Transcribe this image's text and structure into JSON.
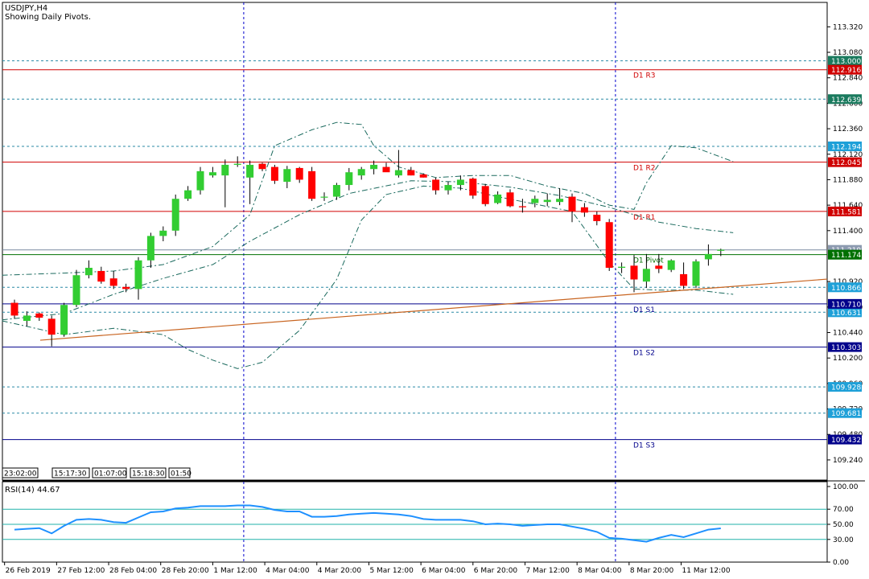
{
  "header": {
    "symbol_label": "USDJPY,H4",
    "subtitle": "Showing Daily Pivots."
  },
  "colors": {
    "bull": "#32cd32",
    "bear": "#ff0000",
    "candle_wick": "#000000",
    "resistance": "#d00000",
    "pivot": "#007000",
    "support": "#00008b",
    "dotted_levels": "#2a8aa6",
    "ma": "#1b6a5e",
    "trendline": "#c86420",
    "rsi": "#1e90ff",
    "rsi_levels": "#20b2aa",
    "grid_vline": "#0000cd"
  },
  "chart_data": [
    {
      "type": "candlestick",
      "title": "USDJPY,H4",
      "subtitle": "Showing Daily Pivots.",
      "ylim": [
        109.05,
        113.55
      ],
      "y_ticks": [
        113.32,
        113.08,
        112.84,
        112.6,
        112.36,
        112.12,
        111.88,
        111.64,
        111.4,
        110.92,
        110.68,
        110.44,
        110.2,
        109.96,
        109.72,
        109.48,
        109.24
      ],
      "x_tick_labels": [
        "26 Feb 2019",
        "27 Feb 12:00",
        "28 Feb 04:00",
        "28 Feb 20:00",
        "1 Mar 12:00",
        "4 Mar 04:00",
        "4 Mar 20:00",
        "5 Mar 12:00",
        "6 Mar 04:00",
        "6 Mar 20:00",
        "7 Mar 12:00",
        "8 Mar 04:00",
        "8 Mar 20:00",
        "11 Mar 12:00"
      ],
      "ohlc": [
        [
          110.72,
          110.75,
          110.57,
          110.6
        ],
        [
          110.55,
          110.64,
          110.5,
          110.6
        ],
        [
          110.62,
          110.63,
          110.55,
          110.58
        ],
        [
          110.57,
          110.6,
          110.31,
          110.42
        ],
        [
          110.42,
          110.72,
          110.4,
          110.7
        ],
        [
          110.7,
          111.03,
          110.68,
          110.98
        ],
        [
          110.98,
          111.12,
          110.95,
          111.05
        ],
        [
          111.02,
          111.06,
          110.9,
          110.92
        ],
        [
          110.95,
          111.02,
          110.85,
          110.88
        ],
        [
          110.87,
          110.9,
          110.82,
          110.85
        ],
        [
          110.85,
          111.15,
          110.75,
          111.12
        ],
        [
          111.12,
          111.38,
          111.05,
          111.35
        ],
        [
          111.35,
          111.44,
          111.3,
          111.4
        ],
        [
          111.4,
          111.74,
          111.35,
          111.7
        ],
        [
          111.7,
          111.82,
          111.68,
          111.78
        ],
        [
          111.78,
          112.0,
          111.74,
          111.96
        ],
        [
          111.92,
          112.0,
          111.9,
          111.95
        ],
        [
          111.92,
          112.07,
          111.62,
          112.02
        ],
        [
          112.02,
          112.1,
          112.0,
          112.03
        ],
        [
          111.9,
          112.06,
          111.65,
          112.02
        ],
        [
          112.03,
          112.04,
          111.96,
          111.98
        ],
        [
          112.0,
          112.02,
          111.84,
          111.87
        ],
        [
          111.86,
          112.01,
          111.8,
          111.98
        ],
        [
          111.99,
          112.0,
          111.85,
          111.88
        ],
        [
          111.96,
          112.0,
          111.68,
          111.7
        ],
        [
          111.72,
          111.76,
          111.68,
          111.72
        ],
        [
          111.72,
          111.85,
          111.69,
          111.83
        ],
        [
          111.83,
          111.99,
          111.78,
          111.95
        ],
        [
          111.92,
          112.0,
          111.88,
          111.98
        ],
        [
          111.98,
          112.06,
          111.93,
          112.02
        ],
        [
          112.0,
          112.04,
          111.96,
          111.95
        ],
        [
          111.92,
          112.16,
          111.9,
          111.97
        ],
        [
          111.97,
          112.0,
          111.92,
          111.92
        ],
        [
          111.93,
          111.94,
          111.9,
          111.9
        ],
        [
          111.88,
          111.9,
          111.74,
          111.78
        ],
        [
          111.78,
          111.86,
          111.74,
          111.83
        ],
        [
          111.83,
          111.92,
          111.78,
          111.88
        ],
        [
          111.89,
          111.9,
          111.7,
          111.73
        ],
        [
          111.82,
          111.84,
          111.63,
          111.65
        ],
        [
          111.66,
          111.77,
          111.65,
          111.74
        ],
        [
          111.76,
          111.79,
          111.62,
          111.63
        ],
        [
          111.63,
          111.7,
          111.57,
          111.62
        ],
        [
          111.66,
          111.73,
          111.62,
          111.7
        ],
        [
          111.67,
          111.75,
          111.63,
          111.69
        ],
        [
          111.67,
          111.8,
          111.64,
          111.7
        ],
        [
          111.72,
          111.75,
          111.48,
          111.58
        ],
        [
          111.62,
          111.66,
          111.53,
          111.57
        ],
        [
          111.55,
          111.58,
          111.45,
          111.49
        ],
        [
          111.48,
          111.51,
          111.02,
          111.05
        ],
        [
          111.05,
          111.1,
          111.0,
          111.06
        ],
        [
          111.07,
          111.17,
          110.82,
          110.94
        ],
        [
          110.92,
          111.18,
          110.86,
          111.04
        ],
        [
          111.07,
          111.18,
          111.0,
          111.04
        ],
        [
          111.03,
          111.13,
          111.01,
          111.12
        ],
        [
          110.99,
          111.1,
          110.85,
          110.88
        ],
        [
          110.88,
          111.13,
          110.86,
          111.11
        ],
        [
          111.13,
          111.27,
          111.07,
          111.18
        ],
        [
          111.21,
          111.23,
          111.16,
          111.22
        ]
      ],
      "pivot_levels": [
        {
          "name": "D1 R3",
          "value": 112.916,
          "tag": "112.916",
          "kind": "resistance"
        },
        {
          "name": "D1 R2",
          "value": 112.045,
          "tag": "112.045",
          "kind": "resistance"
        },
        {
          "name": "D1 R1",
          "value": 111.581,
          "tag": "111.581",
          "kind": "resistance"
        },
        {
          "name": "D1 Pivot",
          "value": 111.174,
          "tag": "111.174",
          "kind": "pivot"
        },
        {
          "name": "D1 S1",
          "value": 110.71,
          "tag": "110.710",
          "kind": "support"
        },
        {
          "name": "D1 S2",
          "value": 110.303,
          "tag": "110.303",
          "kind": "support"
        },
        {
          "name": "D1 S3",
          "value": 109.432,
          "tag": "109.432",
          "kind": "support"
        }
      ],
      "dotted_levels": [
        {
          "value": 113.0,
          "tag": "113.000"
        },
        {
          "value": 112.639,
          "tag": "112.639"
        },
        {
          "value": 112.194,
          "tag": "112.194"
        },
        {
          "value": 110.866,
          "tag": "110.866"
        },
        {
          "value": 110.631,
          "tag": "110.631"
        },
        {
          "value": 109.928,
          "tag": "109.928"
        },
        {
          "value": 109.681,
          "tag": "109.681"
        }
      ],
      "price_line": {
        "value": 111.219,
        "tag": "111.219"
      },
      "upper_band": [
        [
          -1,
          110.98
        ],
        [
          4,
          111.0
        ],
        [
          8,
          111.02
        ],
        [
          12,
          111.08
        ],
        [
          16,
          111.25
        ],
        [
          19,
          111.55
        ],
        [
          21,
          112.2
        ],
        [
          24,
          112.35
        ],
        [
          26,
          112.42
        ],
        [
          28,
          112.4
        ],
        [
          29,
          112.2
        ],
        [
          31,
          112.0
        ],
        [
          34,
          111.9
        ],
        [
          37,
          111.92
        ],
        [
          40,
          111.92
        ],
        [
          43,
          111.82
        ],
        [
          46,
          111.75
        ],
        [
          48,
          111.64
        ],
        [
          50,
          111.6
        ],
        [
          51,
          111.85
        ],
        [
          53,
          112.2
        ],
        [
          55,
          112.18
        ],
        [
          58,
          112.05
        ]
      ],
      "middle_band": [
        [
          -1,
          110.56
        ],
        [
          4,
          110.62
        ],
        [
          8,
          110.8
        ],
        [
          12,
          110.95
        ],
        [
          16,
          111.08
        ],
        [
          19,
          111.3
        ],
        [
          23,
          111.55
        ],
        [
          27,
          111.75
        ],
        [
          32,
          111.87
        ],
        [
          36,
          111.86
        ],
        [
          40,
          111.81
        ],
        [
          44,
          111.73
        ],
        [
          48,
          111.62
        ],
        [
          52,
          111.48
        ],
        [
          55,
          111.42
        ],
        [
          58,
          111.38
        ]
      ],
      "lower_band": [
        [
          -1,
          110.55
        ],
        [
          4,
          110.42
        ],
        [
          8,
          110.48
        ],
        [
          12,
          110.42
        ],
        [
          14,
          110.28
        ],
        [
          16,
          110.18
        ],
        [
          18,
          110.1
        ],
        [
          20,
          110.16
        ],
        [
          23,
          110.46
        ],
        [
          26,
          110.94
        ],
        [
          28,
          111.5
        ],
        [
          30,
          111.74
        ],
        [
          33,
          111.82
        ],
        [
          36,
          111.8
        ],
        [
          39,
          111.72
        ],
        [
          42,
          111.65
        ],
        [
          45,
          111.58
        ],
        [
          48,
          111.1
        ],
        [
          50,
          110.85
        ],
        [
          52,
          110.84
        ],
        [
          55,
          110.84
        ],
        [
          58,
          110.8
        ]
      ],
      "trendline": [
        [
          -1,
          110.34
        ],
        [
          63,
          110.92
        ]
      ],
      "vertical_separators": [
        18.5,
        48.5
      ],
      "time_labels": [
        "23:02:00",
        "15:17:30",
        "01:07:00",
        "15:18:30",
        "01:50"
      ]
    },
    {
      "type": "line",
      "title": "RSI(14) 44.67",
      "ylim": [
        0,
        100
      ],
      "y_ticks": [
        100,
        70,
        50,
        30,
        0
      ],
      "y_tick_labels": [
        "100.00",
        "70.00",
        "50.00",
        "30.00",
        "0.00"
      ],
      "levels": [
        70,
        50,
        30
      ],
      "series": [
        {
          "name": "RSI(14)",
          "values": [
            43,
            44,
            45,
            38,
            48,
            56,
            57,
            56,
            53,
            52,
            59,
            66,
            67,
            71,
            72,
            74,
            74,
            74,
            75,
            75,
            73,
            69,
            67,
            67,
            60,
            60,
            61,
            63,
            64,
            65,
            64,
            63,
            61,
            57,
            56,
            56,
            56,
            54,
            50,
            51,
            50,
            48,
            49,
            50,
            50,
            47,
            44,
            40,
            32,
            31,
            29,
            27,
            32,
            36,
            33,
            38,
            43,
            44.67
          ]
        }
      ]
    }
  ]
}
